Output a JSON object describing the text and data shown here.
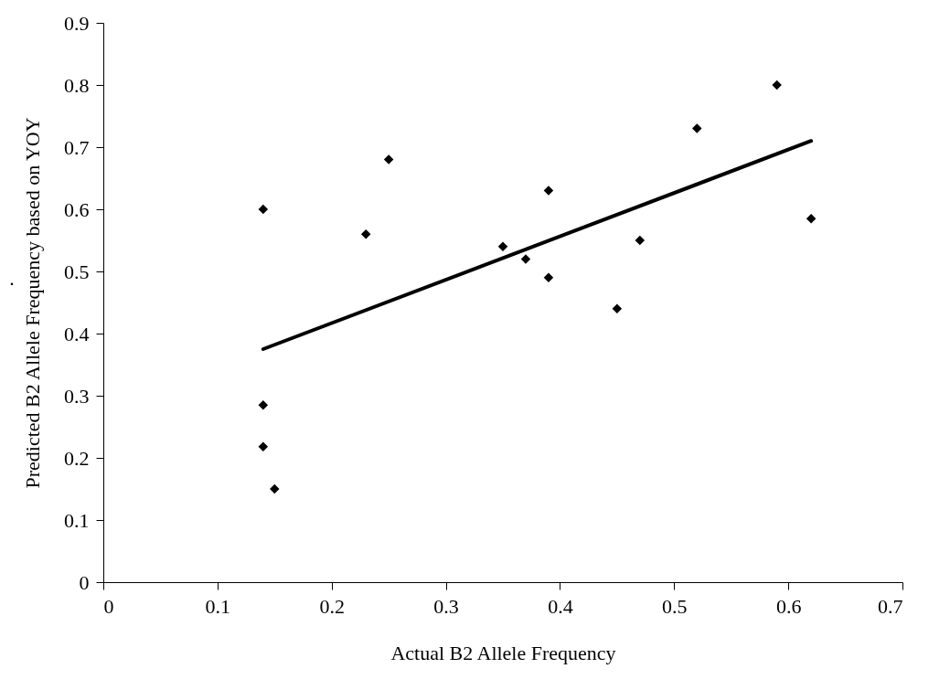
{
  "chart_data": {
    "type": "scatter",
    "xlabel": "Actual B2 Allele Frequency",
    "ylabel": "Predicted B2 Allele Frequency based on YOY",
    "annotations": [
      "."
    ],
    "xlim": [
      0,
      0.7
    ],
    "xticks": [
      0,
      0.1,
      0.2,
      0.3,
      0.4,
      0.5,
      0.6,
      0.7
    ],
    "ylim": [
      0,
      0.9
    ],
    "yticks": [
      0,
      0.1,
      0.2,
      0.3,
      0.4,
      0.5,
      0.6,
      0.7,
      0.8,
      0.9
    ],
    "grid": false,
    "series": [
      {
        "marker": "diamond",
        "color": "#000000",
        "x": [
          0.14,
          0.14,
          0.14,
          0.15,
          0.23,
          0.25,
          0.35,
          0.37,
          0.39,
          0.39,
          0.45,
          0.47,
          0.52,
          0.59,
          0.62
        ],
        "values": [
          0.6,
          0.285,
          0.218,
          0.15,
          0.56,
          0.68,
          0.54,
          0.52,
          0.63,
          0.49,
          0.44,
          0.55,
          0.73,
          0.8,
          0.585
        ]
      },
      {
        "type": "line",
        "marker": "none",
        "color": "#000000",
        "line_style": "solid",
        "x": [
          0.14,
          0.62
        ],
        "values": [
          0.375,
          0.71
        ]
      }
    ]
  }
}
